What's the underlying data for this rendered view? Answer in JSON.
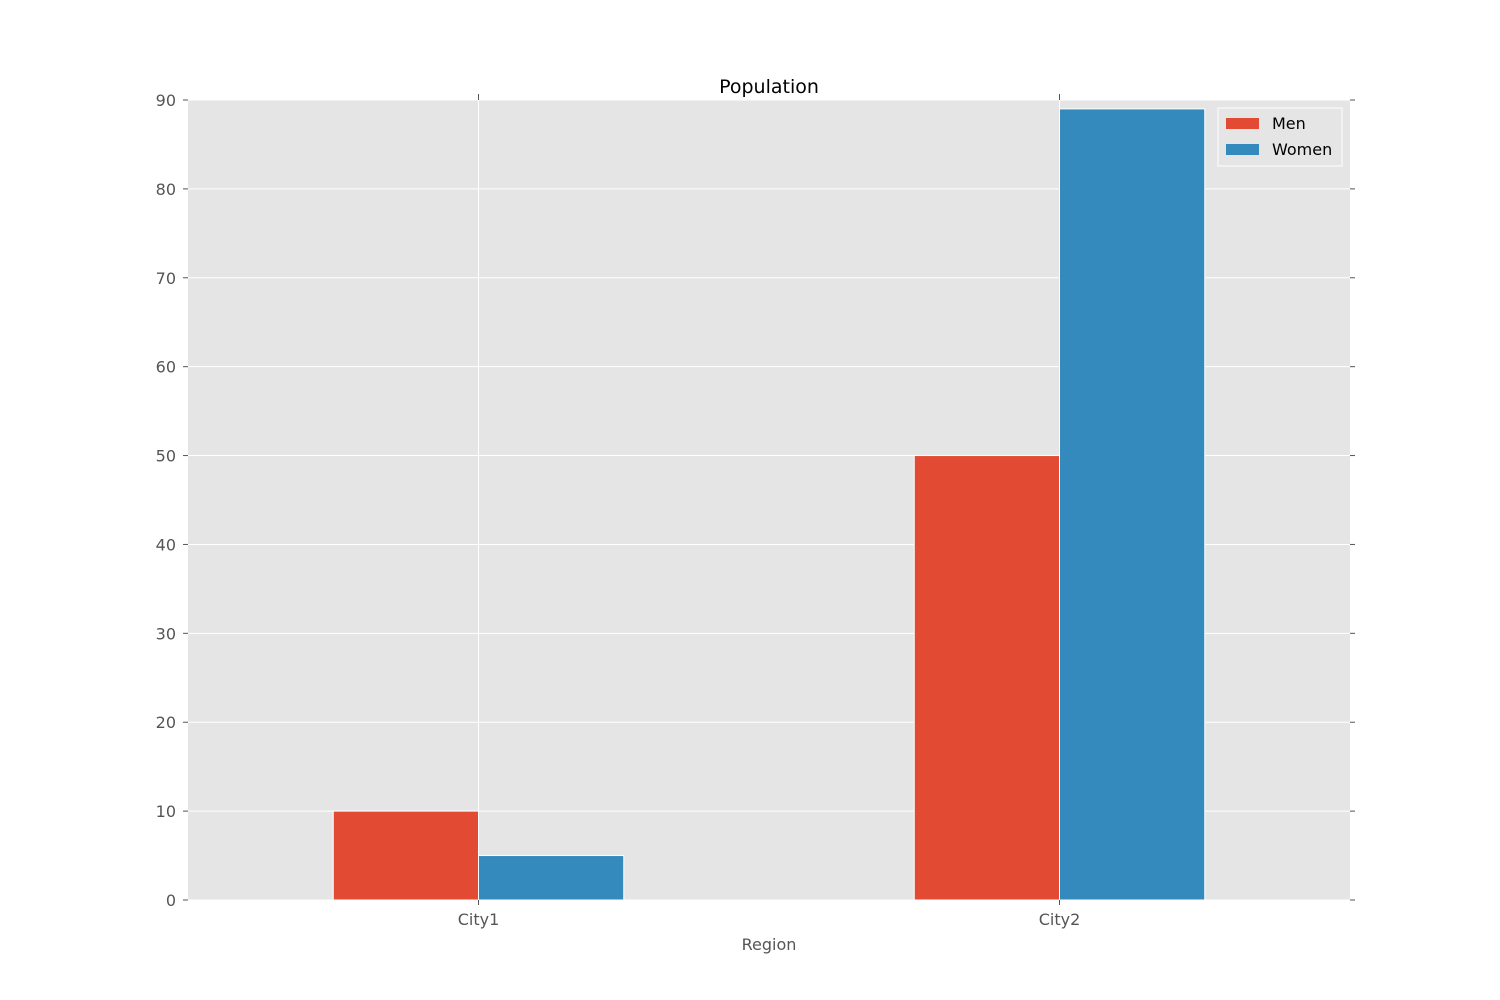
{
  "chart_data": {
    "type": "bar",
    "title": "Population",
    "xlabel": "Region",
    "ylabel": "",
    "categories": [
      "City1",
      "City2"
    ],
    "series": [
      {
        "name": "Men",
        "values": [
          10,
          50
        ],
        "color": "#E24A33"
      },
      {
        "name": "Women",
        "values": [
          5,
          89
        ],
        "color": "#348ABD"
      }
    ],
    "ylim": [
      0,
      90
    ],
    "yticks": [
      0,
      10,
      20,
      30,
      40,
      50,
      60,
      70,
      80,
      90
    ],
    "grid": true,
    "legend_position": "top-right",
    "plot_background": "#E5E5E5",
    "grid_color": "#FFFFFF"
  }
}
